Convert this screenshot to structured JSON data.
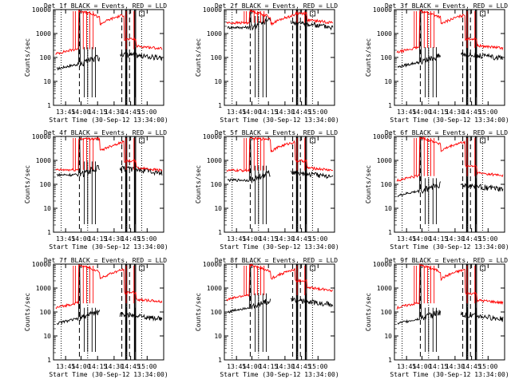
{
  "chart_data": [
    {
      "type": "line",
      "title": "Det 1f BLACK = Events, RED = LLD",
      "ylabel": "Counts/sec",
      "xlabel": "Start Time (30-Sep-12 13:34:00)",
      "xticks": [
        "13:45",
        "14:00",
        "14:15",
        "14:30",
        "14:45",
        "15:00"
      ],
      "yticks": [
        "1",
        "10",
        "100",
        "1000",
        "10000"
      ],
      "ylim": [
        1,
        10000
      ],
      "yscale": "log",
      "series": [
        {
          "color": "#000000",
          "shape": "A",
          "base": 90,
          "pre": 50
        },
        {
          "color": "#ff0000",
          "shape": "A",
          "base": 230,
          "pre": 220
        }
      ]
    },
    {
      "type": "line",
      "title": "Det 2f BLACK = Events, RED = LLD",
      "ylabel": "Counts/sec",
      "xlabel": "Start Time (30-Sep-12 13:34:00)",
      "xticks": [
        "13:45",
        "14:00",
        "14:15",
        "14:30",
        "14:45",
        "15:00"
      ],
      "yticks": [
        "1",
        "10",
        "100",
        "1000",
        "10000"
      ],
      "ylim": [
        1,
        10000
      ],
      "yscale": "log",
      "series": [
        {
          "color": "#000000",
          "shape": "B",
          "base": 1800,
          "pre": 1800
        },
        {
          "color": "#ff0000",
          "shape": "B",
          "base": 2800,
          "pre": 2800
        }
      ]
    },
    {
      "type": "line",
      "title": "Det 3f BLACK = Events, RED = LLD",
      "ylabel": "Counts/sec",
      "xlabel": "Start Time (30-Sep-12 13:34:00)",
      "xticks": [
        "13:45",
        "14:00",
        "14:15",
        "14:30",
        "14:45",
        "15:00"
      ],
      "yticks": [
        "1",
        "10",
        "100",
        "1000",
        "10000"
      ],
      "ylim": [
        1,
        10000
      ],
      "yscale": "log",
      "series": [
        {
          "color": "#000000",
          "shape": "A",
          "base": 90,
          "pre": 60
        },
        {
          "color": "#ff0000",
          "shape": "A",
          "base": 240,
          "pre": 250
        }
      ]
    },
    {
      "type": "line",
      "title": "Det 4f BLACK = Events, RED = LLD",
      "ylabel": "Counts/sec",
      "xlabel": "Start Time (30-Sep-12 13:34:00)",
      "xticks": [
        "13:45",
        "14:00",
        "14:15",
        "14:30",
        "14:45",
        "15:00"
      ],
      "yticks": [
        "1",
        "10",
        "100",
        "1000",
        "10000"
      ],
      "ylim": [
        1,
        10000
      ],
      "yscale": "log",
      "series": [
        {
          "color": "#000000",
          "shape": "C",
          "base": 300,
          "pre": 250
        },
        {
          "color": "#ff0000",
          "shape": "C",
          "base": 380,
          "pre": 400
        }
      ]
    },
    {
      "type": "line",
      "title": "Det 5f BLACK = Events, RED = LLD",
      "ylabel": "Counts/sec",
      "xlabel": "Start Time (30-Sep-12 13:34:00)",
      "xticks": [
        "13:45",
        "14:00",
        "14:15",
        "14:30",
        "14:45",
        "15:00"
      ],
      "yticks": [
        "1",
        "10",
        "100",
        "1000",
        "10000"
      ],
      "ylim": [
        1,
        10000
      ],
      "yscale": "log",
      "series": [
        {
          "color": "#000000",
          "shape": "C",
          "base": 200,
          "pre": 150
        },
        {
          "color": "#ff0000",
          "shape": "C",
          "base": 380,
          "pre": 380
        }
      ]
    },
    {
      "type": "line",
      "title": "Det 6f BLACK = Events, RED = LLD",
      "ylabel": "Counts/sec",
      "xlabel": "Start Time (30-Sep-12 13:34:00)",
      "xticks": [
        "13:45",
        "14:00",
        "14:15",
        "14:30",
        "14:45",
        "15:00"
      ],
      "yticks": [
        "1",
        "10",
        "100",
        "1000",
        "10000"
      ],
      "ylim": [
        1,
        10000
      ],
      "yscale": "log",
      "series": [
        {
          "color": "#000000",
          "shape": "A",
          "base": 60,
          "pre": 50
        },
        {
          "color": "#ff0000",
          "shape": "A",
          "base": 230,
          "pre": 220
        }
      ]
    },
    {
      "type": "line",
      "title": "Det 7f BLACK = Events, RED = LLD",
      "ylabel": "Counts/sec",
      "xlabel": "Start Time (30-Sep-12 13:34:00)",
      "xticks": [
        "13:45",
        "14:00",
        "14:15",
        "14:30",
        "14:45",
        "15:00"
      ],
      "yticks": [
        "1",
        "10",
        "100",
        "1000",
        "10000"
      ],
      "ylim": [
        1,
        10000
      ],
      "yscale": "log",
      "series": [
        {
          "color": "#000000",
          "shape": "A",
          "base": 50,
          "pre": 50
        },
        {
          "color": "#ff0000",
          "shape": "A",
          "base": 260,
          "pre": 230
        }
      ]
    },
    {
      "type": "line",
      "title": "Det 8f BLACK = Events, RED = LLD",
      "ylabel": "Counts/sec",
      "xlabel": "Start Time (30-Sep-12 13:34:00)",
      "xticks": [
        "13:45",
        "14:00",
        "14:15",
        "14:30",
        "14:45",
        "15:00"
      ],
      "yticks": [
        "1",
        "10",
        "100",
        "1000",
        "10000"
      ],
      "ylim": [
        1,
        10000
      ],
      "yscale": "log",
      "series": [
        {
          "color": "#000000",
          "shape": "D",
          "base": 200,
          "pre": 150
        },
        {
          "color": "#ff0000",
          "shape": "D",
          "base": 800,
          "pre": 500
        }
      ]
    },
    {
      "type": "line",
      "title": "Det 9f BLACK = Events, RED = LLD",
      "ylabel": "Counts/sec",
      "xlabel": "Start Time (30-Sep-12 13:34:00)",
      "xticks": [
        "13:45",
        "14:00",
        "14:15",
        "14:30",
        "14:45",
        "15:00"
      ],
      "yticks": [
        "1",
        "10",
        "100",
        "1000",
        "10000"
      ],
      "ylim": [
        1,
        10000
      ],
      "yscale": "log",
      "series": [
        {
          "color": "#000000",
          "shape": "A",
          "base": 50,
          "pre": 50
        },
        {
          "color": "#ff0000",
          "shape": "A",
          "base": 240,
          "pre": 230
        }
      ]
    }
  ]
}
